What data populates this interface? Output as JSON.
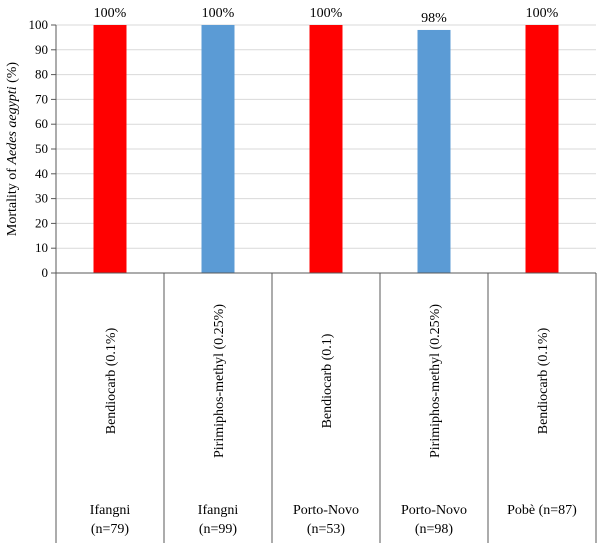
{
  "chart_data": {
    "type": "bar",
    "title": "",
    "ylabel": {
      "prefix": "Mortality of ",
      "italic": "Aedes aegypti",
      "suffix": " (%)"
    },
    "ylim": [
      0,
      100
    ],
    "ytick_step": 10,
    "grid": true,
    "categories": [
      {
        "treatment": "Bendiocarb (0.1%)",
        "location": "Ifangni",
        "n": "(n=79)",
        "value": 100,
        "label": "100%",
        "color": "#ff0000"
      },
      {
        "treatment": "Pirimiphos-methyl (0.25%)",
        "location": "Ifangni",
        "n": "(n=99)",
        "value": 100,
        "label": "100%",
        "color": "#5b9bd5"
      },
      {
        "treatment": "Bendiocarb (0.1)",
        "location": "Porto-Novo",
        "n": "(n=53)",
        "value": 100,
        "label": "100%",
        "color": "#ff0000"
      },
      {
        "treatment": "Pirimiphos-methyl (0.25%)",
        "location": "Porto-Novo",
        "n": "(n=98)",
        "value": 98,
        "label": "98%",
        "color": "#5b9bd5"
      },
      {
        "treatment": "Bendiocarb (0.1%)",
        "location": "Pobè (n=87)",
        "n": "",
        "value": 100,
        "label": "100%",
        "color": "#ff0000"
      }
    ]
  }
}
